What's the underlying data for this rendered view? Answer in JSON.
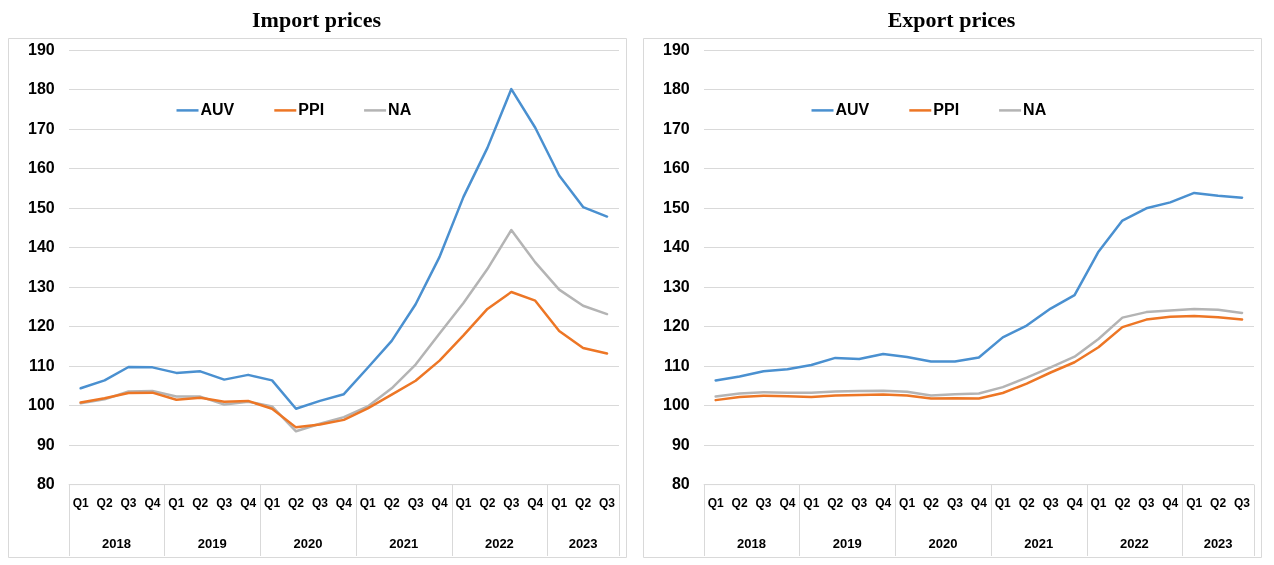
{
  "chart_data": [
    {
      "type": "line",
      "title": "Import prices",
      "categories": [
        "Q1",
        "Q2",
        "Q3",
        "Q4",
        "Q1",
        "Q2",
        "Q3",
        "Q4",
        "Q1",
        "Q2",
        "Q3",
        "Q4",
        "Q1",
        "Q2",
        "Q3",
        "Q4",
        "Q1",
        "Q2",
        "Q3",
        "Q4",
        "Q1",
        "Q2",
        "Q3"
      ],
      "annotations": [
        "2018",
        "2019",
        "2020",
        "2021",
        "2022",
        "2023"
      ],
      "series": [
        {
          "name": "AUV",
          "color": "#4a90d0",
          "values": [
            104.4,
            106.4,
            109.8,
            109.7,
            108.3,
            108.7,
            106.6,
            107.8,
            106.4,
            99.2,
            101.2,
            102.9,
            109.6,
            116.4,
            125.7,
            137.7,
            152.9,
            165.3,
            180.2,
            170.4,
            158.3,
            150.3,
            147.9
          ]
        },
        {
          "name": "PPI",
          "color": "#ed7625",
          "values": [
            100.8,
            101.9,
            103.2,
            103.3,
            101.5,
            102.0,
            101.0,
            101.2,
            99.2,
            94.5,
            95.2,
            96.4,
            99.3,
            102.8,
            106.3,
            111.4,
            117.8,
            124.5,
            128.8,
            126.6,
            118.9,
            114.6,
            113.2
          ]
        },
        {
          "name": "NA",
          "color": "#b4b4b4",
          "values": [
            100.6,
            101.6,
            103.6,
            103.7,
            102.3,
            102.3,
            100.3,
            101.0,
            99.8,
            93.5,
            95.4,
            97.1,
            99.8,
            104.4,
            110.4,
            118.3,
            126.0,
            134.6,
            144.5,
            136.3,
            129.4,
            125.3,
            123.2
          ]
        }
      ],
      "ylim": [
        80,
        190
      ],
      "yticks": [
        80,
        90,
        100,
        110,
        120,
        130,
        140,
        150,
        160,
        170,
        180,
        190
      ],
      "grid": "y",
      "legend": "top",
      "marker": "none",
      "line_style": "solid"
    },
    {
      "type": "line",
      "title": "Export prices",
      "categories": [
        "Q1",
        "Q2",
        "Q3",
        "Q4",
        "Q1",
        "Q2",
        "Q3",
        "Q4",
        "Q1",
        "Q2",
        "Q3",
        "Q4",
        "Q1",
        "Q2",
        "Q3",
        "Q4",
        "Q1",
        "Q2",
        "Q3",
        "Q4",
        "Q1",
        "Q2",
        "Q3"
      ],
      "annotations": [
        "2018",
        "2019",
        "2020",
        "2021",
        "2022",
        "2023"
      ],
      "series": [
        {
          "name": "AUV",
          "color": "#4a90d0",
          "values": [
            106.4,
            107.4,
            108.7,
            109.2,
            110.3,
            112.1,
            111.8,
            113.1,
            112.3,
            111.2,
            111.2,
            112.2,
            117.3,
            120.3,
            124.6,
            128.0,
            139.0,
            146.9,
            150.0,
            151.5,
            153.9,
            153.2,
            152.7
          ]
        },
        {
          "name": "PPI",
          "color": "#ed7625",
          "values": [
            101.4,
            102.2,
            102.5,
            102.4,
            102.2,
            102.6,
            102.7,
            102.8,
            102.6,
            101.8,
            101.9,
            101.8,
            103.2,
            105.6,
            108.4,
            111.0,
            114.8,
            119.9,
            121.8,
            122.5,
            122.7,
            122.4,
            121.8
          ]
        },
        {
          "name": "NA",
          "color": "#b4b4b4",
          "values": [
            102.3,
            103.1,
            103.4,
            103.3,
            103.3,
            103.6,
            103.7,
            103.8,
            103.5,
            102.6,
            102.9,
            103.1,
            104.7,
            107.1,
            109.7,
            112.4,
            116.9,
            122.3,
            123.7,
            124.1,
            124.5,
            124.3,
            123.5
          ]
        }
      ],
      "ylim": [
        80,
        190
      ],
      "yticks": [
        80,
        90,
        100,
        110,
        120,
        130,
        140,
        150,
        160,
        170,
        180,
        190
      ],
      "grid": "y",
      "legend": "top",
      "marker": "none",
      "line_style": "solid"
    }
  ]
}
